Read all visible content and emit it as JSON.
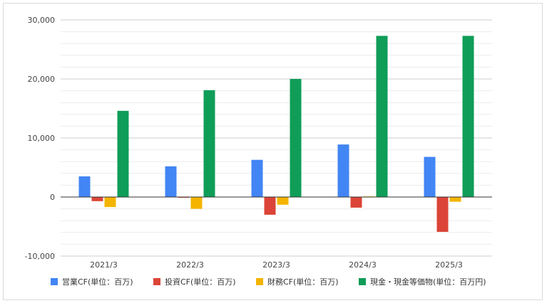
{
  "chart_data": {
    "type": "bar",
    "categories": [
      "2021/3",
      "2022/3",
      "2023/3",
      "2024/3",
      "2025/3"
    ],
    "series": [
      {
        "name": "営業CF(単位：百万)",
        "color": "#4285f4",
        "values": [
          3500,
          5200,
          6300,
          8900,
          6800
        ]
      },
      {
        "name": "投資CF(単位：百万)",
        "color": "#db4437",
        "values": [
          -700,
          -100,
          -3000,
          -1800,
          -5900
        ]
      },
      {
        "name": "財務CF(単位：百万)",
        "color": "#f4b400",
        "values": [
          -1700,
          -2000,
          -1300,
          100,
          -800
        ]
      },
      {
        "name": "現金・現金等価物(単位：百万円)",
        "color": "#0f9d58",
        "values": [
          14600,
          18100,
          20000,
          27300,
          27300
        ]
      }
    ],
    "y_ticks": [
      "30,000",
      "20,000",
      "10,000",
      "0",
      "-10,000"
    ],
    "y_tick_values": [
      30000,
      20000,
      10000,
      0,
      -10000
    ],
    "ylim": [
      -10000,
      30000
    ],
    "grid": true,
    "legend_position": "bottom"
  }
}
